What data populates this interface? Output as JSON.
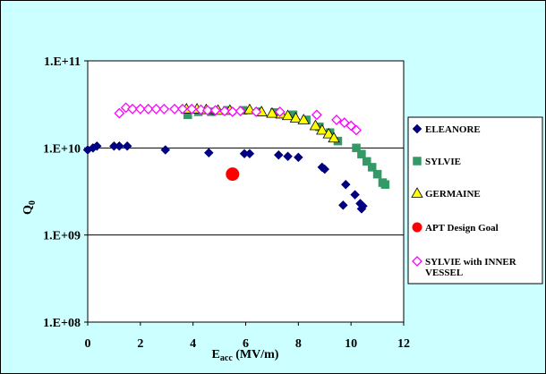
{
  "chart_data": {
    "type": "scatter",
    "title": "",
    "xlabel": "E",
    "xlabel_sub": "acc",
    "xlabel_unit": " (MV/m)",
    "ylabel": "Q",
    "ylabel_sub": "0",
    "xlim": [
      0,
      12
    ],
    "ylim_log10": [
      8,
      11
    ],
    "y_scale": "log",
    "x_ticks": [
      "0",
      "2",
      "4",
      "6",
      "8",
      "10",
      "12"
    ],
    "y_ticks": [
      "1.E+08",
      "1.E+09",
      "1.E+10",
      "1.E+11"
    ],
    "grid": "horizontal major lines",
    "legend_position": "right",
    "series": [
      {
        "name": "ELEANORE",
        "marker": "diamond",
        "color": "#000080",
        "points": [
          [
            0.0,
            9500000000.0
          ],
          [
            0.2,
            10000000000.0
          ],
          [
            0.35,
            10500000000.0
          ],
          [
            1.0,
            10500000000.0
          ],
          [
            1.2,
            10500000000.0
          ],
          [
            1.5,
            10500000000.0
          ],
          [
            2.95,
            9500000000.0
          ],
          [
            4.6,
            8800000000.0
          ],
          [
            5.95,
            8600000000.0
          ],
          [
            6.15,
            8600000000.0
          ],
          [
            7.25,
            8300000000.0
          ],
          [
            7.6,
            8000000000.0
          ],
          [
            8.0,
            7800000000.0
          ],
          [
            8.9,
            6000000000.0
          ],
          [
            9.0,
            5700000000.0
          ],
          [
            9.7,
            2200000000.0
          ],
          [
            9.8,
            3800000000.0
          ],
          [
            10.15,
            2900000000.0
          ],
          [
            10.35,
            2300000000.0
          ],
          [
            10.4,
            2000000000.0
          ],
          [
            10.45,
            2150000000.0
          ]
        ]
      },
      {
        "name": "SYLVIE",
        "marker": "square",
        "color": "#339966",
        "points": [
          [
            3.8,
            24000000000.0
          ],
          [
            4.2,
            26000000000.0
          ],
          [
            4.7,
            26000000000.0
          ],
          [
            5.3,
            27000000000.0
          ],
          [
            5.9,
            27000000000.0
          ],
          [
            6.5,
            26000000000.0
          ],
          [
            7.1,
            25500000000.0
          ],
          [
            7.8,
            24000000000.0
          ],
          [
            8.3,
            21000000000.0
          ],
          [
            8.8,
            17500000000.0
          ],
          [
            9.2,
            15000000000.0
          ],
          [
            9.5,
            12000000000.0
          ],
          [
            10.2,
            10000000000.0
          ],
          [
            10.4,
            8500000000.0
          ],
          [
            10.6,
            7000000000.0
          ],
          [
            10.8,
            6000000000.0
          ],
          [
            11.0,
            5000000000.0
          ],
          [
            11.2,
            4000000000.0
          ],
          [
            11.3,
            3800000000.0
          ]
        ]
      },
      {
        "name": "GERMAINE",
        "marker": "triangle",
        "color": "#ffff00",
        "points": [
          [
            3.75,
            28000000000.0
          ],
          [
            4.15,
            28000000000.0
          ],
          [
            4.5,
            27500000000.0
          ],
          [
            4.95,
            27000000000.0
          ],
          [
            5.4,
            27000000000.0
          ],
          [
            6.15,
            27500000000.0
          ],
          [
            6.6,
            26000000000.0
          ],
          [
            7.0,
            25000000000.0
          ],
          [
            7.35,
            24500000000.0
          ],
          [
            7.6,
            23500000000.0
          ],
          [
            7.9,
            22000000000.0
          ],
          [
            8.2,
            21000000000.0
          ],
          [
            8.65,
            18000000000.0
          ],
          [
            8.9,
            16000000000.0
          ],
          [
            9.15,
            14500000000.0
          ],
          [
            9.35,
            13000000000.0
          ]
        ]
      },
      {
        "name": "APT Design Goal",
        "marker": "circle",
        "color": "#ff0000",
        "points": [
          [
            5.5,
            5000000000.0
          ]
        ]
      },
      {
        "name": "SYLVIE with INNER VESSEL",
        "marker": "diamond-open",
        "color": "#ff00ff",
        "points": [
          [
            1.2,
            25000000000.0
          ],
          [
            1.45,
            29000000000.0
          ],
          [
            1.7,
            28000000000.0
          ],
          [
            2.0,
            28000000000.0
          ],
          [
            2.3,
            28000000000.0
          ],
          [
            2.6,
            28000000000.0
          ],
          [
            2.9,
            28000000000.0
          ],
          [
            3.3,
            28000000000.0
          ],
          [
            3.6,
            28000000000.0
          ],
          [
            3.95,
            28000000000.0
          ],
          [
            4.3,
            27500000000.0
          ],
          [
            4.55,
            27000000000.0
          ],
          [
            4.85,
            27000000000.0
          ],
          [
            5.2,
            26500000000.0
          ],
          [
            5.5,
            26000000000.0
          ],
          [
            5.8,
            26500000000.0
          ],
          [
            6.4,
            26000000000.0
          ],
          [
            7.3,
            26000000000.0
          ],
          [
            8.7,
            24000000000.0
          ],
          [
            9.45,
            21000000000.0
          ],
          [
            9.75,
            19500000000.0
          ],
          [
            10.0,
            18000000000.0
          ],
          [
            10.2,
            16000000000.0
          ]
        ]
      }
    ]
  }
}
